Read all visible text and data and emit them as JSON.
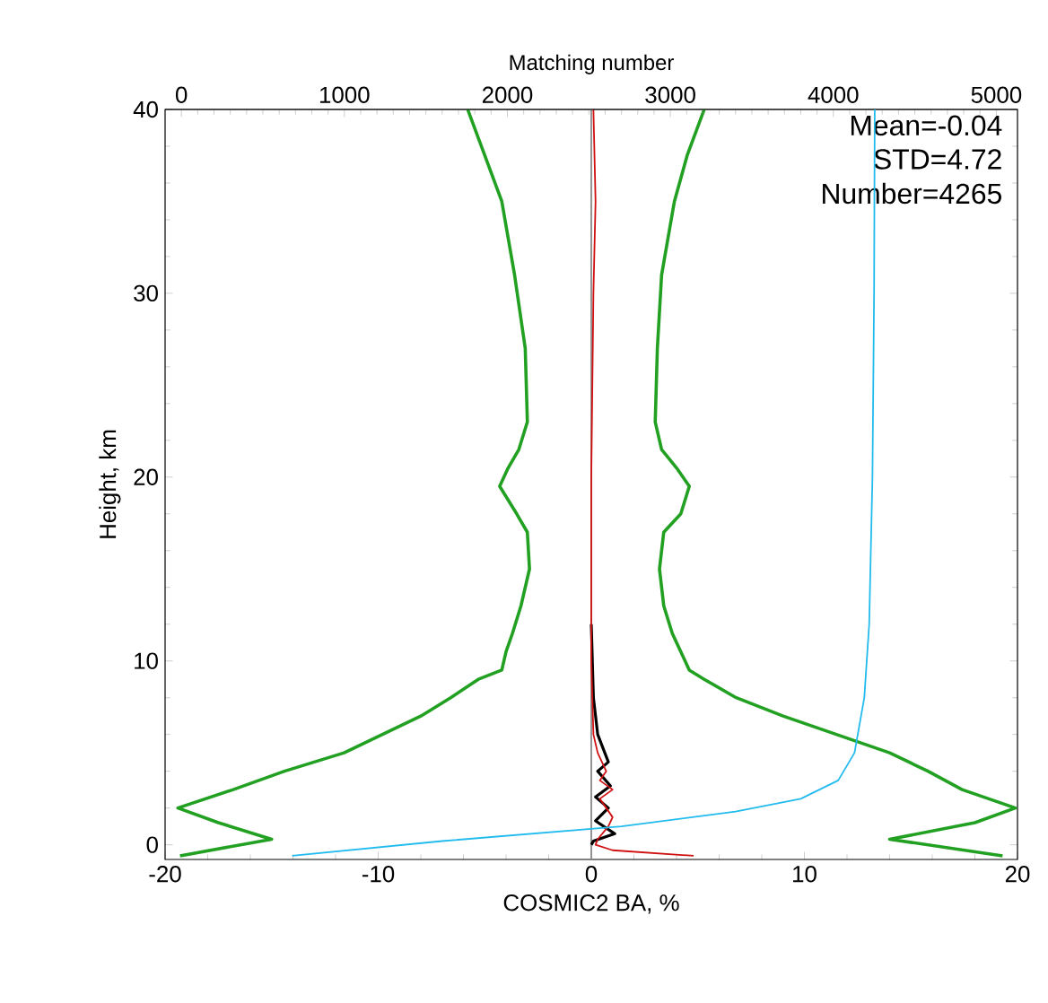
{
  "chart_data": {
    "type": "line",
    "xlabel": "COSMIC2 BA, %",
    "ylabel": "Height, km",
    "x2label": "Matching number",
    "xlim": [
      -20,
      20
    ],
    "xticks": [
      -20,
      -10,
      0,
      10,
      20
    ],
    "ylim": [
      -0.8,
      40
    ],
    "yticks": [
      0,
      10,
      20,
      30,
      40
    ],
    "x2lim": [
      -100,
      5130
    ],
    "x2ticks": [
      0,
      1000,
      2000,
      3000,
      4000,
      5000
    ],
    "grid": false,
    "ref_lines": [
      {
        "axis": "x",
        "value": 0,
        "color": "#888888"
      }
    ],
    "annotations": [
      "Mean=-0.04",
      "STD=4.72",
      "Number=4265"
    ],
    "series": [
      {
        "color": "#22a022",
        "x": [
          -5.8,
          -5,
          -4.2,
          -3.6,
          -3.1,
          -3.0,
          -3.4,
          -3.9,
          -4.3,
          -3.5,
          -3.0,
          -2.9,
          -3.3,
          -3.7,
          -4.0,
          -4.2,
          -5.3,
          -6.6,
          -8.0,
          -9.8,
          -11.6,
          -14.4,
          -16.8,
          -19.4,
          -17.5,
          -15.0,
          -19.3
        ],
        "values": [
          40,
          37.5,
          35,
          31,
          27,
          23,
          21.5,
          20.5,
          19.5,
          18,
          17,
          15,
          13,
          11.5,
          10.5,
          9.5,
          9,
          8,
          7,
          6,
          5,
          4,
          3,
          2,
          1.2,
          0.3,
          -0.6
        ]
      },
      {
        "color": "#22a022",
        "x": [
          5.3,
          4.5,
          3.9,
          3.3,
          3.1,
          3.0,
          3.3,
          4.0,
          4.6,
          4.2,
          3.4,
          3.2,
          3.4,
          3.8,
          4.6,
          5.3,
          6.8,
          9.0,
          11.5,
          14.0,
          15.8,
          17.4,
          19.9,
          18.0,
          14.0,
          19.3
        ],
        "values": [
          40,
          37.5,
          35,
          31,
          27,
          23,
          21.5,
          20.5,
          19.5,
          18,
          17,
          15,
          13,
          11.5,
          9.5,
          9,
          8,
          7,
          6,
          5,
          4,
          3,
          2,
          1.2,
          0.3,
          -0.6
        ]
      },
      {
        "color": "#000000",
        "x": [
          0,
          0.1,
          0.3,
          0.8,
          0.3,
          0.9,
          0.2,
          0.8,
          0.2,
          1.1,
          0.1,
          0
        ],
        "values": [
          12,
          8,
          6,
          4.5,
          4,
          3.2,
          2.6,
          2,
          1.3,
          0.6,
          0.2,
          0
        ]
      },
      {
        "color": "#d01010",
        "x": [
          0.1,
          0.2,
          0.1,
          0,
          0,
          0.1,
          0.3,
          0.7,
          0.4,
          1.0,
          0.4,
          1.0,
          0.8,
          0.3,
          0.2,
          1.0,
          4.8
        ],
        "values": [
          40,
          35,
          30,
          20,
          10,
          6,
          5,
          4,
          3.5,
          3,
          2.5,
          1.5,
          1,
          0.3,
          0,
          -0.3,
          -0.6
        ]
      },
      {
        "color": "#22bbee",
        "axis": "x2",
        "x": [
          4254,
          4250,
          4240,
          4220,
          4190,
          4130,
          4030,
          3800,
          3400,
          2700,
          1600,
          680
        ],
        "values": [
          40,
          30,
          20,
          12,
          8,
          5,
          3.5,
          2.5,
          1.8,
          1.0,
          0.2,
          -0.6
        ]
      }
    ]
  }
}
